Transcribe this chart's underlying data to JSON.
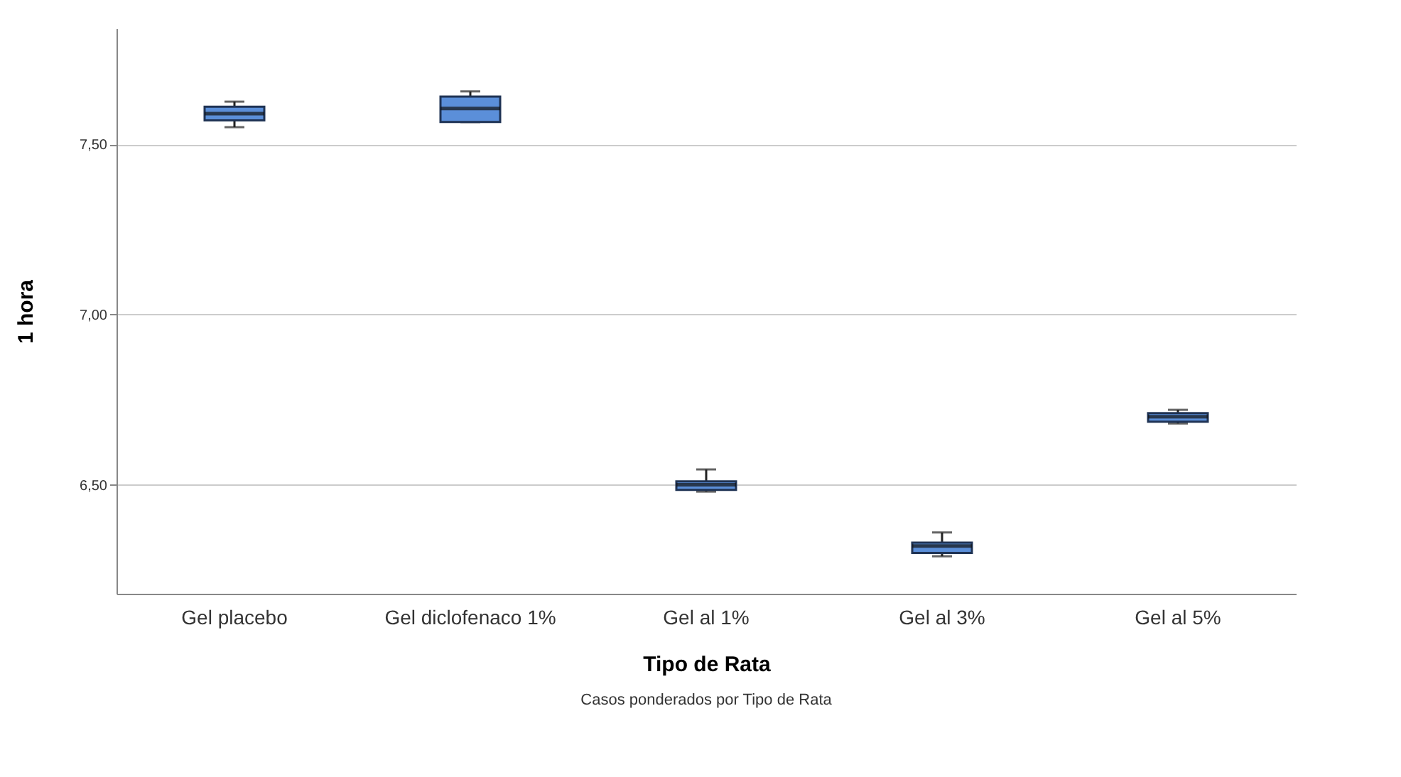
{
  "chart_data": {
    "type": "box",
    "xlabel": "Tipo de Rata",
    "ylabel": "1 hora",
    "categories": [
      "Gel placebo",
      "Gel diclofenaco 1%",
      "Gel al 1%",
      "Gel al 3%",
      "Gel al 5%"
    ],
    "boxes": [
      {
        "low": 7.55,
        "q1": 7.57,
        "median": 7.59,
        "q3": 7.61,
        "high": 7.625
      },
      {
        "low": 7.565,
        "q1": 7.565,
        "median": 7.605,
        "q3": 7.64,
        "high": 7.655
      },
      {
        "low": 6.48,
        "q1": 6.485,
        "median": 6.5,
        "q3": 6.51,
        "high": 6.545
      },
      {
        "low": 6.29,
        "q1": 6.3,
        "median": 6.32,
        "q3": 6.33,
        "high": 6.36
      },
      {
        "low": 6.68,
        "q1": 6.685,
        "median": 6.7,
        "q3": 6.71,
        "high": 6.72
      }
    ],
    "color": "#5b8fd9",
    "ylim": [
      6.18,
      7.84
    ],
    "yticks": [
      {
        "value": 6.5,
        "label": "6,50"
      },
      {
        "value": 7,
        "label": "7,00"
      },
      {
        "value": 7.5,
        "label": "7,50"
      }
    ],
    "grid": "y",
    "annotations": [
      "Casos ponderados por Tipo de Rata"
    ]
  }
}
